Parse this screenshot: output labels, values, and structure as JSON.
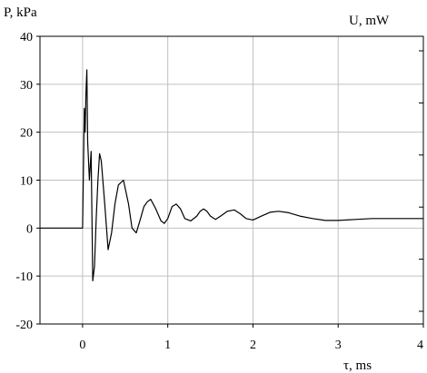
{
  "chart_data": {
    "type": "line",
    "ylabel_left": "P, kPa",
    "ylabel_right": "U, mW",
    "xlabel": "τ, ms",
    "xlim": [
      -0.5,
      4
    ],
    "ylim": [
      -20,
      40
    ],
    "x_ticks": [
      0,
      1,
      2,
      3,
      4
    ],
    "y_ticks": [
      -20,
      -10,
      0,
      10,
      20,
      30,
      40
    ],
    "x_tick_labels": [
      "0",
      "1",
      "2",
      "3",
      "4"
    ],
    "y_tick_labels": [
      "-20",
      "-10",
      "0",
      "10",
      "20",
      "30",
      "40"
    ],
    "right_axis_tick_count": 6,
    "grid": true,
    "series": [
      {
        "color": "#000000",
        "x": [
          -0.5,
          -0.3,
          -0.1,
          0.0,
          0.02,
          0.03,
          0.04,
          0.05,
          0.06,
          0.08,
          0.1,
          0.12,
          0.14,
          0.16,
          0.18,
          0.2,
          0.22,
          0.26,
          0.3,
          0.34,
          0.38,
          0.42,
          0.48,
          0.54,
          0.58,
          0.63,
          0.68,
          0.72,
          0.76,
          0.8,
          0.86,
          0.92,
          0.96,
          1.0,
          1.05,
          1.1,
          1.15,
          1.2,
          1.27,
          1.34,
          1.38,
          1.42,
          1.46,
          1.5,
          1.56,
          1.62,
          1.7,
          1.78,
          1.85,
          1.92,
          2.0,
          2.1,
          2.2,
          2.3,
          2.42,
          2.55,
          2.7,
          2.85,
          3.0,
          3.2,
          3.4,
          3.6,
          3.8,
          4.0
        ],
        "y": [
          0,
          0,
          0,
          0,
          25,
          20,
          28,
          33,
          18,
          10,
          16,
          -11,
          -8,
          2,
          10,
          15.5,
          14,
          5,
          -4.5,
          -1,
          5,
          9,
          10,
          5,
          0,
          -1,
          2,
          4.5,
          5.5,
          6,
          4,
          1.5,
          1,
          2,
          4.5,
          5,
          4,
          2,
          1.5,
          2.5,
          3.5,
          4,
          3.5,
          2.5,
          1.8,
          2.5,
          3.5,
          3.8,
          3,
          2,
          1.7,
          2.5,
          3.3,
          3.5,
          3.2,
          2.5,
          2,
          1.6,
          1.6,
          1.8,
          2,
          2,
          2,
          2
        ]
      }
    ]
  }
}
